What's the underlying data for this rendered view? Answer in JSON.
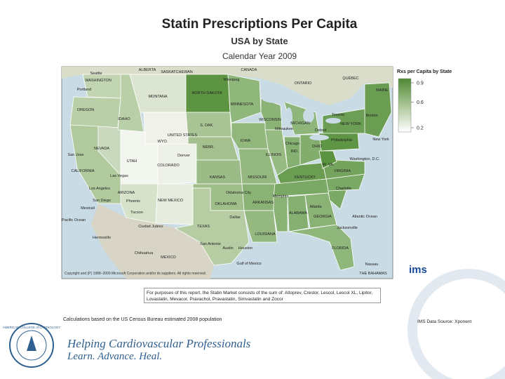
{
  "header": {
    "title": "Statin Prescriptions Per Capita",
    "subtitle": "USA by State",
    "period": "Calendar Year 2009"
  },
  "legend": {
    "title": "Rxs per Capita by State",
    "ticks": [
      0.9,
      0.6,
      0.2
    ]
  },
  "map_labels": [
    "ALBERTA",
    "SASKATCHEWAN",
    "CANADA",
    "Winnipeg",
    "ONTARIO",
    "QUÉBEC",
    "Seattle",
    "WASHINGTON",
    "Portland",
    "OREGON",
    "IDAHO",
    "MONTANA",
    "NORTH DAKOTA",
    "MINNESOTA",
    "WISCONSIN",
    "MICHIGAN",
    "S. DAK.",
    "WYO.",
    "NEBR.",
    "IOWA",
    "ILLINOIS",
    "IND.",
    "OHIO",
    "NEW YORK",
    "Philadelphia",
    "New York",
    "MAINE",
    "Boston",
    "Toronto",
    "Chicago",
    "Milwaukee",
    "Detroit",
    "NEVADA",
    "UTAH",
    "COLORADO",
    "Denver",
    "San Jose",
    "CALIFORNIA",
    "Las Vegas",
    "KANSAS",
    "MISSOURI",
    "KENTUCKY",
    "W. VA.",
    "VIRGINIA",
    "Washington, D.C.",
    "Los Angeles",
    "ARIZONA",
    "NEW MEXICO",
    "Oklahoma City",
    "OKLAHOMA",
    "ARKANSAS",
    "Charlotte",
    "San Diego",
    "Phoenix",
    "Memphis",
    "Dallas",
    "TEXAS",
    "Tucson",
    "Mexicali",
    "ALABAMA",
    "GEORGIA",
    "Atlanta",
    "Pacific Ocean",
    "Atlantic Ocean",
    "Ciudad Juárez",
    "LOUISIANA",
    "Jacksonville",
    "Austin",
    "Houston",
    "San Antonio",
    "FLORIDA",
    "Hermosillo",
    "Chihuahua",
    "MEXICO",
    "Gulf of Mexico",
    "Nassau",
    "THE BAHAMAS",
    "UNITED STATES"
  ],
  "map_copyright": "Copyright and (P) 1988–2009 Microsoft Corporation and/or its suppliers. All rights reserved.",
  "logo": "ims",
  "note": "For purposes of this report, the Statin Market consists of the sum of: Altoprev, Crestor, Lescol, Lescol XL, Lipitor, Lovastatin, Mevacor, Pravachol, Pravastatin, Simvastatin and Zocor",
  "calculation_note": "Calculations based on the US Census Bureau estimated 2008 population",
  "source": "IMS Data Source: Xponent",
  "footer": {
    "seal": "AMERICAN COLLEGE of CARDIOLOGY",
    "tagline": "Helping Cardiovascular Professionals",
    "motto": "Learn. Advance. Heal."
  }
}
